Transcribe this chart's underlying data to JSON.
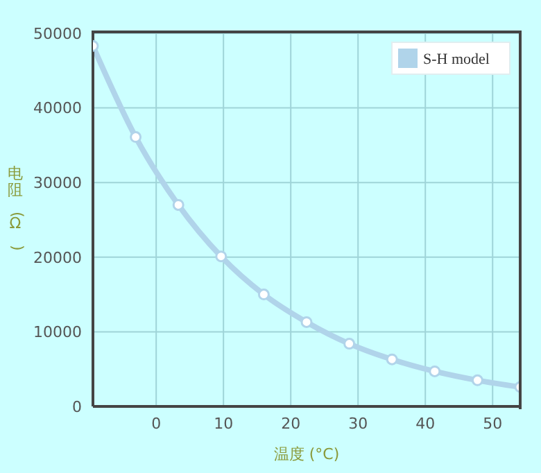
{
  "chart_data": {
    "type": "line",
    "xlabel": "温度 (°C)",
    "ylabel": "电阻(Ω)",
    "x": [
      -9.4,
      -3.05,
      3.3,
      9.65,
      16,
      22.35,
      28.7,
      35.05,
      41.4,
      47.75,
      54.1
    ],
    "series": [
      {
        "name": "S-H model",
        "color": "#b0d4ea",
        "values": [
          48300,
          36100,
          27000,
          20100,
          15000,
          11300,
          8400,
          6300,
          4700,
          3500,
          2600
        ]
      }
    ],
    "xlim": [
      -9.4,
      54.1
    ],
    "xticks": [
      0,
      10,
      20,
      30,
      40,
      50
    ],
    "ylim": [
      0,
      50000
    ],
    "yticks": [
      0,
      10000,
      20000,
      30000,
      40000,
      50000
    ],
    "grid": true,
    "legend": "top right",
    "marker": "circle",
    "line_style": "solid"
  }
}
